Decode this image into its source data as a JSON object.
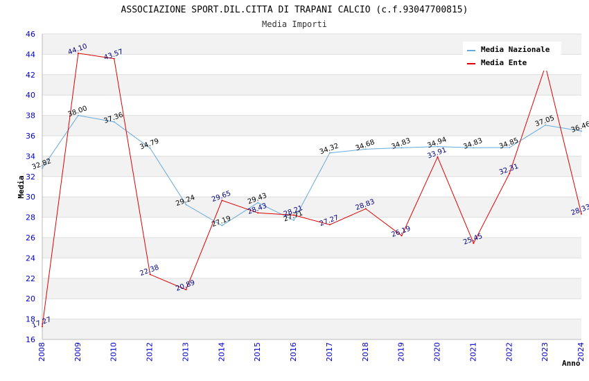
{
  "chart_data": {
    "type": "line",
    "title": "ASSOCIAZIONE SPORT.DIL.CITTA DI TRAPANI CALCIO (c.f.93047700815)",
    "subtitle": "Media Importi",
    "xlabel": "Anno",
    "ylabel": "Media",
    "ylim": [
      16,
      46
    ],
    "yticks": [
      16,
      18,
      20,
      22,
      24,
      26,
      28,
      30,
      32,
      34,
      36,
      38,
      40,
      42,
      44,
      46
    ],
    "categories": [
      "2008",
      "2009",
      "2010",
      "2012",
      "2013",
      "2014",
      "2015",
      "2016",
      "2017",
      "2018",
      "2019",
      "2020",
      "2021",
      "2022",
      "2023",
      "2024"
    ],
    "grid": true,
    "legend_position": "top-right",
    "series": [
      {
        "name": "Media Nazionale",
        "color": "#66aadd",
        "label_color": "#000000",
        "values": [
          32.82,
          38.0,
          37.36,
          34.79,
          29.24,
          27.19,
          29.43,
          27.71,
          34.32,
          34.68,
          34.83,
          34.94,
          34.83,
          34.85,
          37.05,
          36.46
        ],
        "labels": [
          "32.82",
          "38.00",
          "37.36",
          "34.79",
          "29.24",
          "27.19",
          "29.43",
          "27.71",
          "34.32",
          "34.68",
          "34.83",
          "34.94",
          "34.83",
          "34.85",
          "37.05",
          "36.46"
        ]
      },
      {
        "name": "Media Ente",
        "color": "#dd0000",
        "label_color": "#000080",
        "values": [
          17.27,
          44.1,
          43.57,
          22.38,
          20.89,
          29.65,
          28.43,
          28.21,
          27.27,
          28.83,
          26.19,
          33.91,
          25.45,
          32.31,
          42.86,
          28.33
        ],
        "labels": [
          "17.27",
          "44.10",
          "43.57",
          "22.38",
          "20.89",
          "29.65",
          "28.43",
          "28.21",
          "27.27",
          "28.83",
          "26.19",
          "33.91",
          "25.45",
          "32.31",
          "",
          "28.33"
        ]
      }
    ]
  }
}
